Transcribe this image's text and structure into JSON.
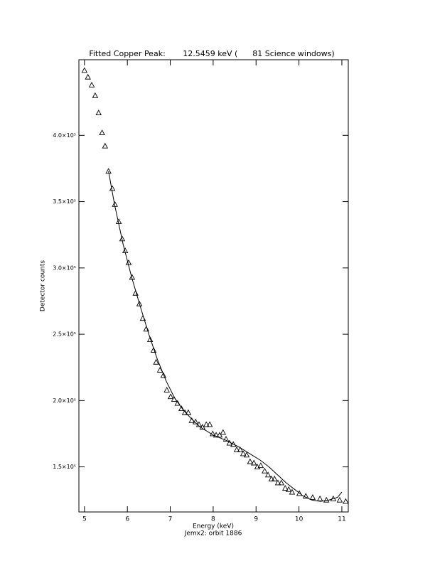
{
  "chart_data": {
    "type": "scatter",
    "title": "Fitted Copper Peak:       12.5459 keV (      81 Science windows)",
    "xlabel": "Energy (keV)",
    "xlabel2": "Jemx2: orbit 1886",
    "ylabel": "Detector counts",
    "xlim": [
      4.87,
      11.15
    ],
    "ylim": [
      116000,
      457000
    ],
    "xticks": [
      5,
      6,
      7,
      8,
      9,
      10,
      11
    ],
    "yticks": [
      {
        "value": 150000,
        "label": "1.5×10⁵"
      },
      {
        "value": 200000,
        "label": "2.0×10⁵"
      },
      {
        "value": 250000,
        "label": "2.5×10⁵"
      },
      {
        "value": 300000,
        "label": "3.0×10⁵"
      },
      {
        "value": 350000,
        "label": "3.5×10⁵"
      },
      {
        "value": 400000,
        "label": "4.0×10⁵"
      }
    ],
    "grid": false,
    "series": [
      {
        "color": "#000000",
        "marker": "triangle",
        "x": [
          5.0,
          5.08,
          5.17,
          5.25,
          5.33,
          5.41,
          5.48,
          5.56,
          5.65,
          5.71,
          5.8,
          5.88,
          5.95,
          6.03,
          6.11,
          6.19,
          6.28,
          6.36,
          6.44,
          6.53,
          6.61,
          6.67,
          6.76,
          6.84,
          6.92,
          7.01,
          7.09,
          7.17,
          7.26,
          7.34,
          7.42,
          7.5,
          7.59,
          7.67,
          7.75,
          7.84,
          7.92,
          7.99,
          8.07,
          8.15,
          8.23,
          8.3,
          8.38,
          8.47,
          8.55,
          8.63,
          8.7,
          8.78,
          8.86,
          8.95,
          9.03,
          9.11,
          9.2,
          9.28,
          9.36,
          9.43,
          9.51,
          9.59,
          9.68,
          9.76,
          9.84,
          10.01,
          10.16,
          10.32,
          10.49,
          10.64,
          10.8,
          10.95,
          11.09
        ],
        "values": [
          449000,
          444000,
          438000,
          430000,
          417000,
          402000,
          392000,
          373000,
          360000,
          348000,
          335000,
          322000,
          313000,
          304000,
          293000,
          281000,
          273000,
          262000,
          254000,
          246000,
          238000,
          229000,
          223000,
          219000,
          208000,
          203000,
          201000,
          198000,
          194000,
          191000,
          191000,
          185000,
          184000,
          182000,
          180000,
          182000,
          182000,
          175000,
          174000,
          174000,
          176000,
          171000,
          168000,
          167000,
          163000,
          163000,
          160000,
          159000,
          154000,
          153000,
          150000,
          151000,
          147000,
          144000,
          141000,
          141000,
          138000,
          138000,
          134000,
          133000,
          131000,
          130000,
          128000,
          127000,
          126000,
          125000,
          126000,
          125000,
          124000
        ]
      },
      {
        "color": "#000000",
        "marker": "none",
        "x": [
          5.56,
          5.7,
          5.9,
          6.1,
          6.3,
          6.5,
          6.7,
          6.9,
          7.1,
          7.3,
          7.5,
          7.7,
          8.0,
          8.3,
          8.6,
          8.9,
          9.1,
          9.3,
          9.5,
          9.7,
          9.9,
          10.1,
          10.3,
          10.5,
          10.7,
          10.9,
          11.0
        ],
        "values": [
          373000,
          348000,
          318000,
          293000,
          271000,
          250000,
          231000,
          215000,
          202000,
          193000,
          186000,
          180000,
          174000,
          170000,
          165000,
          159000,
          155000,
          150000,
          144000,
          138000,
          133000,
          128000,
          125000,
          124000,
          125000,
          127000,
          131000
        ]
      }
    ]
  }
}
